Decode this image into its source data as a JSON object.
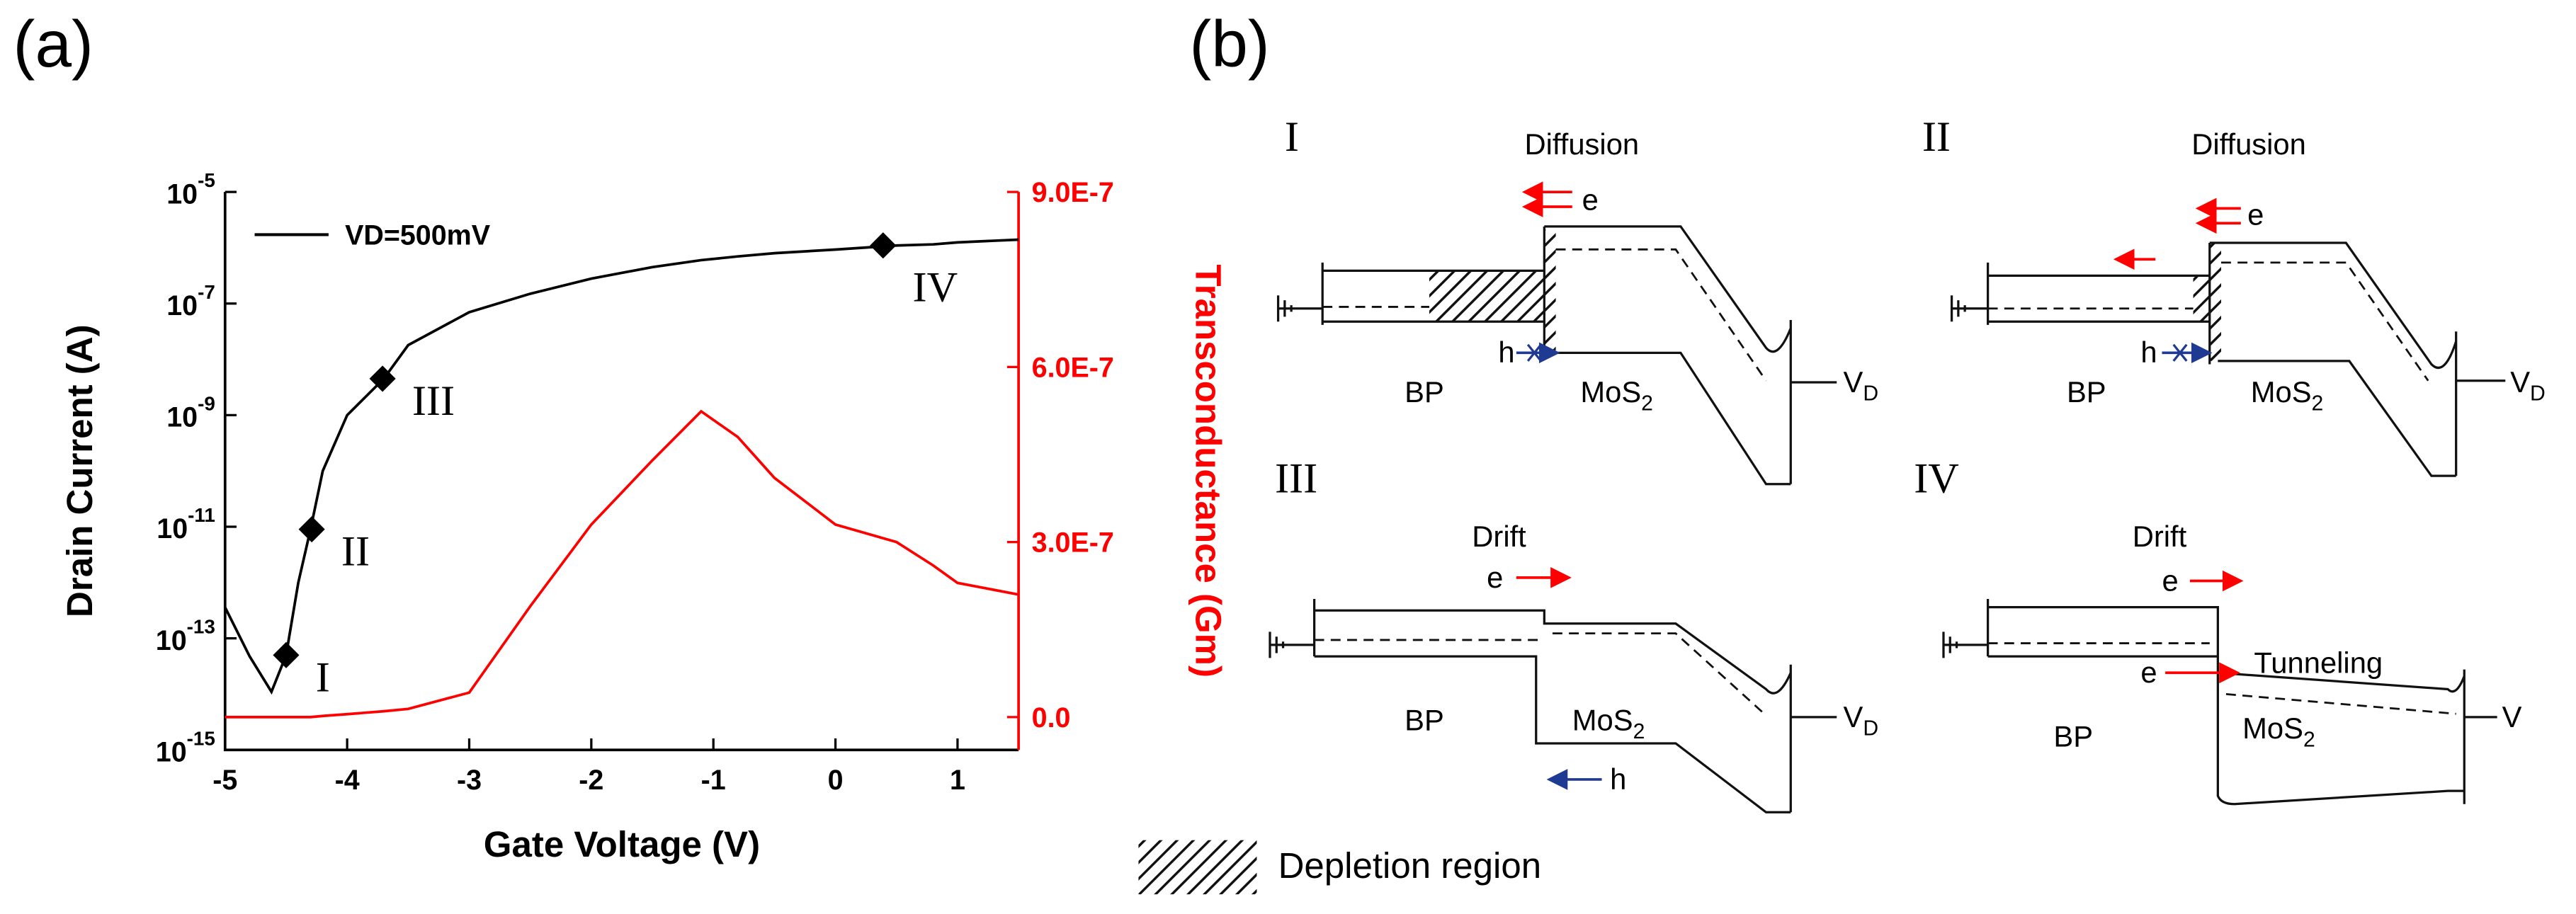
{
  "panel_labels": [
    "(a)",
    "(b)"
  ],
  "chart_data": {
    "type": "line",
    "log_y": true,
    "xlabel": "Gate Voltage (V)",
    "ylabel": "Drain Current (A)",
    "y2label": "Transconductance (Gm)",
    "xlim": [
      -5,
      1.5
    ],
    "xticks": [
      -5,
      -4,
      -3,
      -2,
      -1,
      0,
      1
    ],
    "ylim": [
      1e-15,
      1e-05
    ],
    "yticks": [
      {
        "value": 1e-15,
        "label": "10",
        "exponent": "-15"
      },
      {
        "value": 1e-13,
        "label": "10",
        "exponent": "-13"
      },
      {
        "value": 1e-11,
        "label": "10",
        "exponent": "-11"
      },
      {
        "value": 1e-09,
        "label": "10",
        "exponent": "-9"
      },
      {
        "value": 1e-07,
        "label": "10",
        "exponent": "-7"
      },
      {
        "value": 1e-05,
        "label": "10",
        "exponent": "-5"
      }
    ],
    "y2lim": [
      -5.625e-08,
      9e-07
    ],
    "y2ticks": [
      {
        "value": 0,
        "label": "0.0"
      },
      {
        "value": 3e-07,
        "label": "3.0E-7"
      },
      {
        "value": 6e-07,
        "label": "6.0E-7"
      },
      {
        "value": 9e-07,
        "label": "9.0E-7"
      }
    ],
    "y2color": "#ff0000",
    "legend": "upper left",
    "x": [
      -5,
      -4.8,
      -4.62,
      -4.5,
      -4.4,
      -4.3,
      -4.2,
      -4,
      -3.7,
      -3.5,
      -3,
      -2.5,
      -2,
      -1.5,
      -1.1,
      -0.8,
      -0.5,
      0,
      0.5,
      0.8,
      1,
      1.5
    ],
    "series": [
      {
        "name": "VD=500mV",
        "color": "#000000",
        "values": [
          3.6e-13,
          4.8e-14,
          1.1e-14,
          5e-14,
          1e-12,
          9e-12,
          1e-10,
          1e-09,
          4.5e-09,
          1.8e-08,
          7e-08,
          1.5e-07,
          2.8e-07,
          4.5e-07,
          6e-07,
          7e-07,
          8e-07,
          9.3e-07,
          1.1e-06,
          1.15e-06,
          1.25e-06,
          1.4e-06
        ]
      },
      {
        "color": "#ff0000",
        "axis": "y2",
        "values": [
          0,
          0,
          0,
          0,
          0,
          0,
          2e-09,
          5e-09,
          1e-08,
          1.4e-08,
          4.2e-08,
          1.9e-07,
          3.3e-07,
          4.4e-07,
          5.24e-07,
          4.8e-07,
          4.1e-07,
          3.3e-07,
          3e-07,
          2.6e-07,
          2.3e-07,
          2.1e-07
        ]
      }
    ],
    "markers": {
      "labels": [
        "I",
        "II",
        "III",
        "IV"
      ],
      "x": [
        -4.5,
        -4.29,
        -3.71,
        0.39
      ],
      "values": [
        5e-14,
        9e-12,
        4.5e-09,
        1.1e-06
      ],
      "color": "#000000"
    }
  },
  "diagram": {
    "panels": [
      {
        "label": "I",
        "process": "Diffusion",
        "carriers": [
          "e",
          "h"
        ],
        "left": "BP",
        "right": {
          "text": "MoS",
          "sub": "2"
        },
        "terminal": {
          "text": "V",
          "sub": "D"
        }
      },
      {
        "label": "II",
        "process": "Diffusion",
        "carriers": [
          "e",
          "h"
        ],
        "left": "BP",
        "right": {
          "text": "MoS",
          "sub": "2"
        },
        "terminal": {
          "text": "V",
          "sub": "D"
        }
      },
      {
        "label": "III",
        "process": "Drift",
        "carriers": [
          "e",
          "h"
        ],
        "left": "BP",
        "right": {
          "text": "MoS",
          "sub": "2"
        },
        "terminal": {
          "text": "V",
          "sub": "D"
        }
      },
      {
        "label": "IV",
        "process": "Drift",
        "carriers": [
          "e",
          "e"
        ],
        "tunneling": "Tunneling",
        "left": "BP",
        "right": {
          "text": "MoS",
          "sub": "2"
        },
        "terminal": {
          "text": "V"
        }
      }
    ],
    "legend": "Depletion region"
  }
}
